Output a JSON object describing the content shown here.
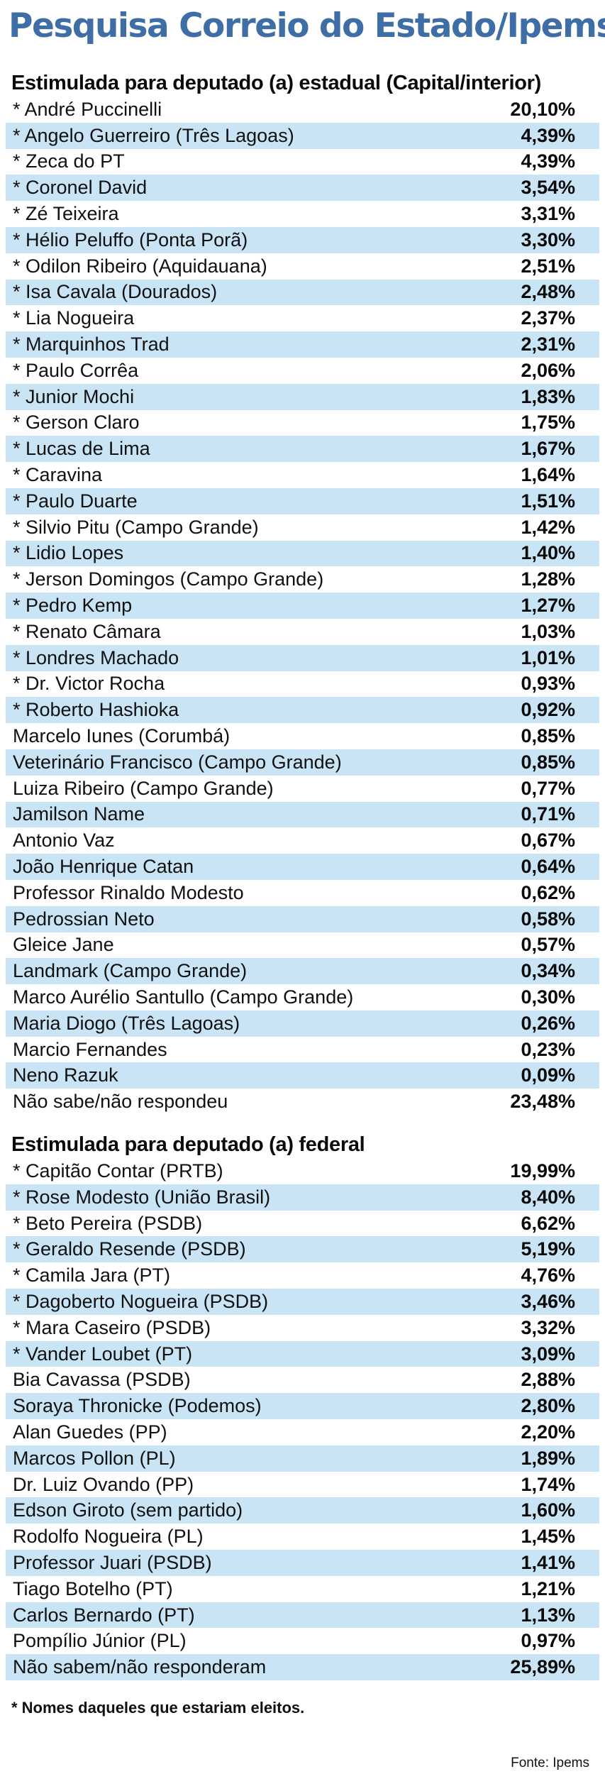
{
  "title": "Pesquisa Correio do Estado/Ipems",
  "sections": [
    {
      "title": "Estimulada para deputado (a) estadual (Capital/interior)",
      "rows": [
        {
          "name": "* André Puccinelli",
          "value": "20,10%"
        },
        {
          "name": "* Angelo Guerreiro (Três Lagoas)",
          "value": "4,39%"
        },
        {
          "name": "* Zeca do PT",
          "value": "4,39%"
        },
        {
          "name": "* Coronel David",
          "value": "3,54%"
        },
        {
          "name": "* Zé Teixeira",
          "value": "3,31%"
        },
        {
          "name": "* Hélio Peluffo (Ponta Porã)",
          "value": "3,30%"
        },
        {
          "name": "* Odilon Ribeiro (Aquidauana)",
          "value": "2,51%"
        },
        {
          "name": "* Isa Cavala (Dourados)",
          "value": "2,48%"
        },
        {
          "name": "* Lia Nogueira",
          "value": "2,37%"
        },
        {
          "name": "* Marquinhos Trad",
          "value": "2,31%"
        },
        {
          "name": "* Paulo Corrêa",
          "value": "2,06%"
        },
        {
          "name": "* Junior Mochi",
          "value": "1,83%"
        },
        {
          "name": "* Gerson Claro",
          "value": "1,75%"
        },
        {
          "name": "* Lucas de Lima",
          "value": "1,67%"
        },
        {
          "name": "* Caravina",
          "value": "1,64%"
        },
        {
          "name": "* Paulo Duarte",
          "value": "1,51%"
        },
        {
          "name": "* Silvio Pitu (Campo Grande)",
          "value": "1,42%"
        },
        {
          "name": "* Lidio Lopes",
          "value": "1,40%"
        },
        {
          "name": "* Jerson Domingos (Campo Grande)",
          "value": "1,28%"
        },
        {
          "name": "* Pedro Kemp",
          "value": "1,27%"
        },
        {
          "name": "* Renato Câmara",
          "value": "1,03%"
        },
        {
          "name": "* Londres Machado",
          "value": "1,01%"
        },
        {
          "name": "* Dr. Victor Rocha",
          "value": "0,93%"
        },
        {
          "name": "* Roberto Hashioka",
          "value": "0,92%"
        },
        {
          "name": "Marcelo Iunes (Corumbá)",
          "value": "0,85%"
        },
        {
          "name": "Veterinário Francisco (Campo Grande)",
          "value": "0,85%"
        },
        {
          "name": "Luiza Ribeiro (Campo Grande)",
          "value": "0,77%"
        },
        {
          "name": "Jamilson Name",
          "value": "0,71%"
        },
        {
          "name": "Antonio Vaz",
          "value": "0,67%"
        },
        {
          "name": "João Henrique Catan",
          "value": "0,64%"
        },
        {
          "name": "Professor Rinaldo Modesto",
          "value": "0,62%"
        },
        {
          "name": "Pedrossian Neto",
          "value": "0,58%"
        },
        {
          "name": "Gleice Jane",
          "value": "0,57%"
        },
        {
          "name": "Landmark (Campo Grande)",
          "value": "0,34%"
        },
        {
          "name": "Marco Aurélio Santullo (Campo Grande)",
          "value": "0,30%"
        },
        {
          "name": "Maria Diogo (Três Lagoas)",
          "value": "0,26%"
        },
        {
          "name": "Marcio Fernandes",
          "value": "0,23%"
        },
        {
          "name": "Neno Razuk",
          "value": "0,09%"
        },
        {
          "name": "Não sabe/não respondeu",
          "value": "23,48%"
        }
      ]
    },
    {
      "title": "Estimulada para deputado (a) federal",
      "rows": [
        {
          "name": "* Capitão Contar (PRTB)",
          "value": "19,99%"
        },
        {
          "name": "* Rose Modesto (União Brasil)",
          "value": "8,40%"
        },
        {
          "name": "* Beto Pereira (PSDB)",
          "value": "6,62%"
        },
        {
          "name": "* Geraldo Resende (PSDB)",
          "value": "5,19%"
        },
        {
          "name": "* Camila Jara (PT)",
          "value": "4,76%"
        },
        {
          "name": "* Dagoberto Nogueira (PSDB)",
          "value": "3,46%"
        },
        {
          "name": "* Mara Caseiro (PSDB)",
          "value": "3,32%"
        },
        {
          "name": "* Vander Loubet (PT)",
          "value": "3,09%"
        },
        {
          "name": "Bia Cavassa (PSDB)",
          "value": "2,88%"
        },
        {
          "name": "Soraya Thronicke (Podemos)",
          "value": "2,80%"
        },
        {
          "name": "Alan Guedes (PP)",
          "value": "2,20%"
        },
        {
          "name": "Marcos Pollon (PL)",
          "value": "1,89%"
        },
        {
          "name": "Dr. Luiz Ovando (PP)",
          "value": "1,74%"
        },
        {
          "name": "Edson Giroto (sem partido)",
          "value": "1,60%"
        },
        {
          "name": "Rodolfo Nogueira (PL)",
          "value": "1,45%"
        },
        {
          "name": "Professor Juari (PSDB)",
          "value": "1,41%"
        },
        {
          "name": "Tiago Botelho (PT)",
          "value": "1,21%"
        },
        {
          "name": "Carlos Bernardo (PT)",
          "value": "1,13%"
        },
        {
          "name": "Pompílio Júnior (PL)",
          "value": "0,97%"
        },
        {
          "name": "Não sabem/não responderam",
          "value": "25,89%"
        }
      ]
    }
  ],
  "footnote": "* Nomes daqueles que estariam eleitos.",
  "source": "Fonte: Ipems",
  "colors": {
    "title": "#3f6ea6",
    "stripe": "#c9e4f4"
  }
}
